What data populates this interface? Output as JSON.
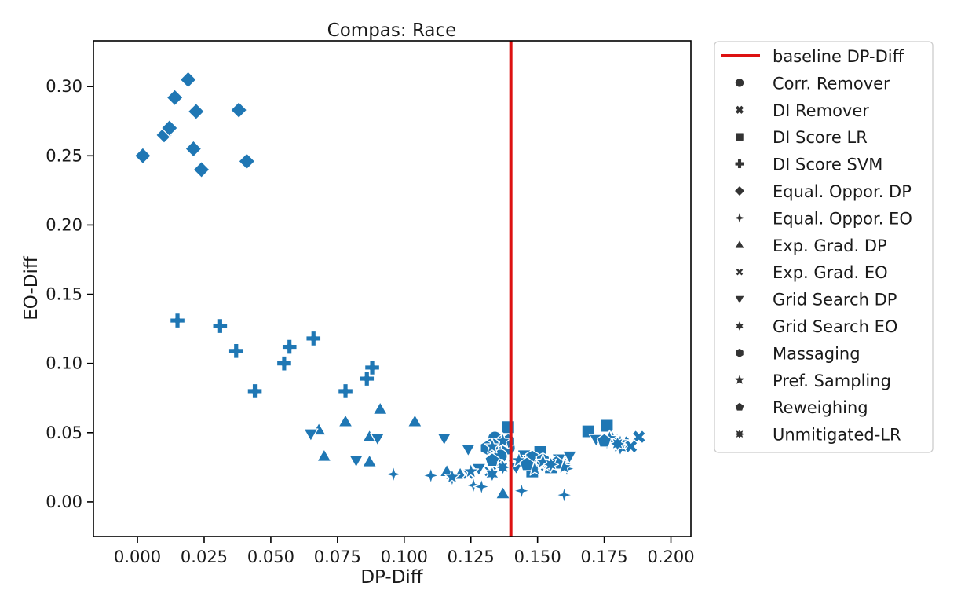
{
  "chart_data": {
    "type": "scatter",
    "title": "Compas: Race",
    "xlabel": "DP-Diff",
    "ylabel": "EO-Diff",
    "xlim": [
      -0.0165,
      0.2075
    ],
    "ylim": [
      -0.025,
      0.333
    ],
    "xticks": [
      "0.000",
      "0.025",
      "0.050",
      "0.075",
      "0.100",
      "0.125",
      "0.150",
      "0.175",
      "0.200"
    ],
    "yticks": [
      "0.00",
      "0.05",
      "0.10",
      "0.15",
      "0.20",
      "0.25",
      "0.30"
    ],
    "grid": false,
    "legend_position": "outside-right",
    "point_color": "#1f77b4",
    "baseline": {
      "name": "baseline DP-Diff",
      "x": 0.14,
      "color": "#dd1111"
    },
    "series": [
      {
        "name": "Corr. Remover",
        "marker": "circle",
        "points": [
          [
            0.134,
            0.046
          ],
          [
            0.137,
            0.043
          ],
          [
            0.139,
            0.039
          ],
          [
            0.136,
            0.033
          ],
          [
            0.133,
            0.041
          ]
        ]
      },
      {
        "name": "DI Remover",
        "marker": "x",
        "points": [
          [
            0.188,
            0.047
          ],
          [
            0.182,
            0.043
          ],
          [
            0.178,
            0.045
          ],
          [
            0.185,
            0.04
          ]
        ]
      },
      {
        "name": "DI Score LR",
        "marker": "square",
        "points": [
          [
            0.139,
            0.054
          ],
          [
            0.151,
            0.036
          ],
          [
            0.145,
            0.033
          ],
          [
            0.169,
            0.051
          ],
          [
            0.176,
            0.055
          ],
          [
            0.155,
            0.025
          ],
          [
            0.16,
            0.029
          ],
          [
            0.148,
            0.022
          ]
        ]
      },
      {
        "name": "DI Score SVM",
        "marker": "plus",
        "points": [
          [
            0.015,
            0.131
          ],
          [
            0.031,
            0.127
          ],
          [
            0.037,
            0.109
          ],
          [
            0.044,
            0.08
          ],
          [
            0.055,
            0.1
          ],
          [
            0.057,
            0.112
          ],
          [
            0.066,
            0.118
          ],
          [
            0.078,
            0.08
          ],
          [
            0.086,
            0.089
          ],
          [
            0.088,
            0.097
          ]
        ]
      },
      {
        "name": "Equal. Oppor. DP",
        "marker": "diamond",
        "points": [
          [
            0.002,
            0.25
          ],
          [
            0.01,
            0.265
          ],
          [
            0.012,
            0.27
          ],
          [
            0.014,
            0.292
          ],
          [
            0.019,
            0.305
          ],
          [
            0.021,
            0.255
          ],
          [
            0.022,
            0.282
          ],
          [
            0.024,
            0.24
          ],
          [
            0.038,
            0.283
          ],
          [
            0.041,
            0.246
          ]
        ]
      },
      {
        "name": "Equal. Oppor. EO",
        "marker": "thin-diamond",
        "points": [
          [
            0.096,
            0.02
          ],
          [
            0.11,
            0.019
          ],
          [
            0.126,
            0.012
          ],
          [
            0.129,
            0.011
          ],
          [
            0.144,
            0.008
          ],
          [
            0.16,
            0.005
          ],
          [
            0.161,
            0.024
          ],
          [
            0.118,
            0.017
          ]
        ]
      },
      {
        "name": "Exp. Grad. DP",
        "marker": "triangle-up",
        "points": [
          [
            0.068,
            0.052
          ],
          [
            0.07,
            0.033
          ],
          [
            0.078,
            0.058
          ],
          [
            0.087,
            0.047
          ],
          [
            0.087,
            0.029
          ],
          [
            0.091,
            0.067
          ],
          [
            0.104,
            0.058
          ],
          [
            0.116,
            0.022
          ],
          [
            0.137,
            0.006
          ],
          [
            0.121,
            0.02
          ]
        ]
      },
      {
        "name": "Exp. Grad. EO",
        "marker": "x-thin",
        "points": [
          [
            0.124,
            0.02
          ],
          [
            0.132,
            0.022
          ],
          [
            0.141,
            0.027
          ],
          [
            0.153,
            0.026
          ],
          [
            0.159,
            0.028
          ]
        ]
      },
      {
        "name": "Grid Search DP",
        "marker": "triangle-down",
        "points": [
          [
            0.065,
            0.049
          ],
          [
            0.082,
            0.03
          ],
          [
            0.09,
            0.046
          ],
          [
            0.115,
            0.046
          ],
          [
            0.124,
            0.038
          ],
          [
            0.128,
            0.024
          ],
          [
            0.134,
            0.027
          ],
          [
            0.142,
            0.025
          ],
          [
            0.147,
            0.03
          ],
          [
            0.158,
            0.031
          ],
          [
            0.162,
            0.033
          ],
          [
            0.172,
            0.045
          ],
          [
            0.176,
            0.043
          ],
          [
            0.18,
            0.042
          ]
        ]
      },
      {
        "name": "Grid Search EO",
        "marker": "star6",
        "points": [
          [
            0.133,
            0.02
          ],
          [
            0.15,
            0.027
          ],
          [
            0.178,
            0.046
          ],
          [
            0.181,
            0.039
          ]
        ]
      },
      {
        "name": "Massaging",
        "marker": "hexagon",
        "points": [
          [
            0.139,
            0.044
          ],
          [
            0.131,
            0.039
          ],
          [
            0.148,
            0.032
          ],
          [
            0.152,
            0.03
          ]
        ]
      },
      {
        "name": "Pref. Sampling",
        "marker": "star",
        "points": [
          [
            0.118,
            0.018
          ],
          [
            0.125,
            0.022
          ],
          [
            0.133,
            0.04
          ],
          [
            0.137,
            0.044
          ],
          [
            0.143,
            0.03
          ],
          [
            0.149,
            0.024
          ],
          [
            0.152,
            0.029
          ],
          [
            0.16,
            0.025
          ],
          [
            0.177,
            0.046
          ],
          [
            0.181,
            0.043
          ]
        ]
      },
      {
        "name": "Reweighing",
        "marker": "pentagon",
        "points": [
          [
            0.133,
            0.03
          ],
          [
            0.146,
            0.027
          ],
          [
            0.157,
            0.028
          ],
          [
            0.175,
            0.044
          ]
        ]
      },
      {
        "name": "Unmitigated-LR",
        "marker": "star8",
        "points": [
          [
            0.137,
            0.025
          ],
          [
            0.155,
            0.027
          ],
          [
            0.18,
            0.042
          ]
        ]
      }
    ]
  }
}
